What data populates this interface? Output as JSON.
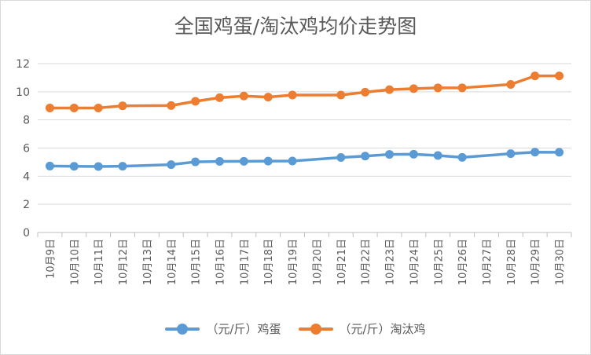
{
  "chart_data": {
    "type": "line",
    "title": "全国鸡蛋/淘汰鸡均价走势图",
    "xlabel": "",
    "ylabel": "",
    "ylim": [
      0,
      12
    ],
    "yticks": [
      0,
      2,
      4,
      6,
      8,
      10,
      12
    ],
    "grid": true,
    "legend_position": "bottom",
    "categories": [
      "10月9日",
      "10月10日",
      "10月11日",
      "10月12日",
      "10月13日",
      "10月14日",
      "10月15日",
      "10月16日",
      "10月17日",
      "10月18日",
      "10月19日",
      "10月20日",
      "10月21日",
      "10月22日",
      "10月23日",
      "10月24日",
      "10月25日",
      "10月26日",
      "10月27日",
      "10月28日",
      "10月29日",
      "10月30日"
    ],
    "series": [
      {
        "name": "（元/斤）鸡蛋",
        "color": "#5b9bd5",
        "values": [
          4.72,
          4.7,
          4.69,
          4.71,
          null,
          4.82,
          5.02,
          5.05,
          5.06,
          5.07,
          5.08,
          null,
          5.33,
          5.43,
          5.55,
          5.56,
          5.47,
          5.34,
          null,
          5.6,
          5.71,
          5.7
        ]
      },
      {
        "name": "（元/斤）淘汰鸡",
        "color": "#ed7d31",
        "values": [
          8.85,
          8.85,
          8.85,
          9.0,
          null,
          9.02,
          9.32,
          9.58,
          9.7,
          9.62,
          9.77,
          null,
          9.77,
          9.97,
          10.15,
          10.22,
          10.28,
          10.28,
          null,
          10.52,
          11.13,
          11.13
        ]
      }
    ]
  }
}
